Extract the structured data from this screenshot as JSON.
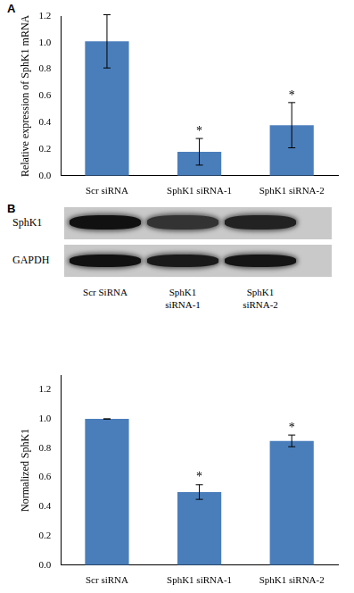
{
  "panel_labels": [
    "A",
    "B"
  ],
  "chart_data": [
    {
      "type": "bar",
      "categories": [
        "Scr siRNA",
        "SphK1 siRNA-1",
        "SphK1 siRNA-2"
      ],
      "values": [
        1.01,
        0.18,
        0.38
      ],
      "error": [
        0.2,
        0.1,
        0.17
      ],
      "color": "#4a7ebb",
      "y_label": "Relative expression of SphK1 mRNA",
      "ylim": [
        0,
        1.2
      ],
      "yticks": [
        {
          "value": 0,
          "label": "0.0"
        },
        {
          "value": 0.2,
          "label": "0.2"
        },
        {
          "value": 0.4,
          "label": "0.4"
        },
        {
          "value": 0.6,
          "label": "0.6"
        },
        {
          "value": 0.8,
          "label": "0.8"
        },
        {
          "value": 1,
          "label": "1.0"
        },
        {
          "value": 1.2,
          "label": "1.2"
        }
      ],
      "grid": false,
      "annotations": [
        {
          "category": "SphK1 siRNA-1",
          "text": "*"
        },
        {
          "category": "SphK1 siRNA-2",
          "text": "*"
        }
      ]
    },
    {
      "type": "bar",
      "categories": [
        "Scr siRNA",
        "SphK1 siRNA-1",
        "SphK1 siRNA-2"
      ],
      "values": [
        1.0,
        0.5,
        0.85
      ],
      "error": [
        0.0,
        0.05,
        0.04
      ],
      "color": "#4a7ebb",
      "y_label": "Normalized SphK1",
      "ylim": [
        0,
        1.3
      ],
      "yticks": [
        {
          "value": 0,
          "label": "0.0"
        },
        {
          "value": 0.2,
          "label": "0.2"
        },
        {
          "value": 0.4,
          "label": "0.4"
        },
        {
          "value": 0.6,
          "label": "0.6"
        },
        {
          "value": 0.8,
          "label": "0.8"
        },
        {
          "value": 1,
          "label": "1.0"
        },
        {
          "value": 1.2,
          "label": "1.2"
        }
      ],
      "grid": false,
      "annotations": [
        {
          "category": "SphK1 siRNA-1",
          "text": "*"
        },
        {
          "category": "SphK1 siRNA-2",
          "text": "*"
        }
      ]
    }
  ],
  "blot": {
    "rows": [
      "SphK1",
      "GAPDH"
    ],
    "lanes": [
      "Scr SiRNA",
      "SphK1 siRNA-1",
      "SphK1 siRNA-2"
    ]
  }
}
